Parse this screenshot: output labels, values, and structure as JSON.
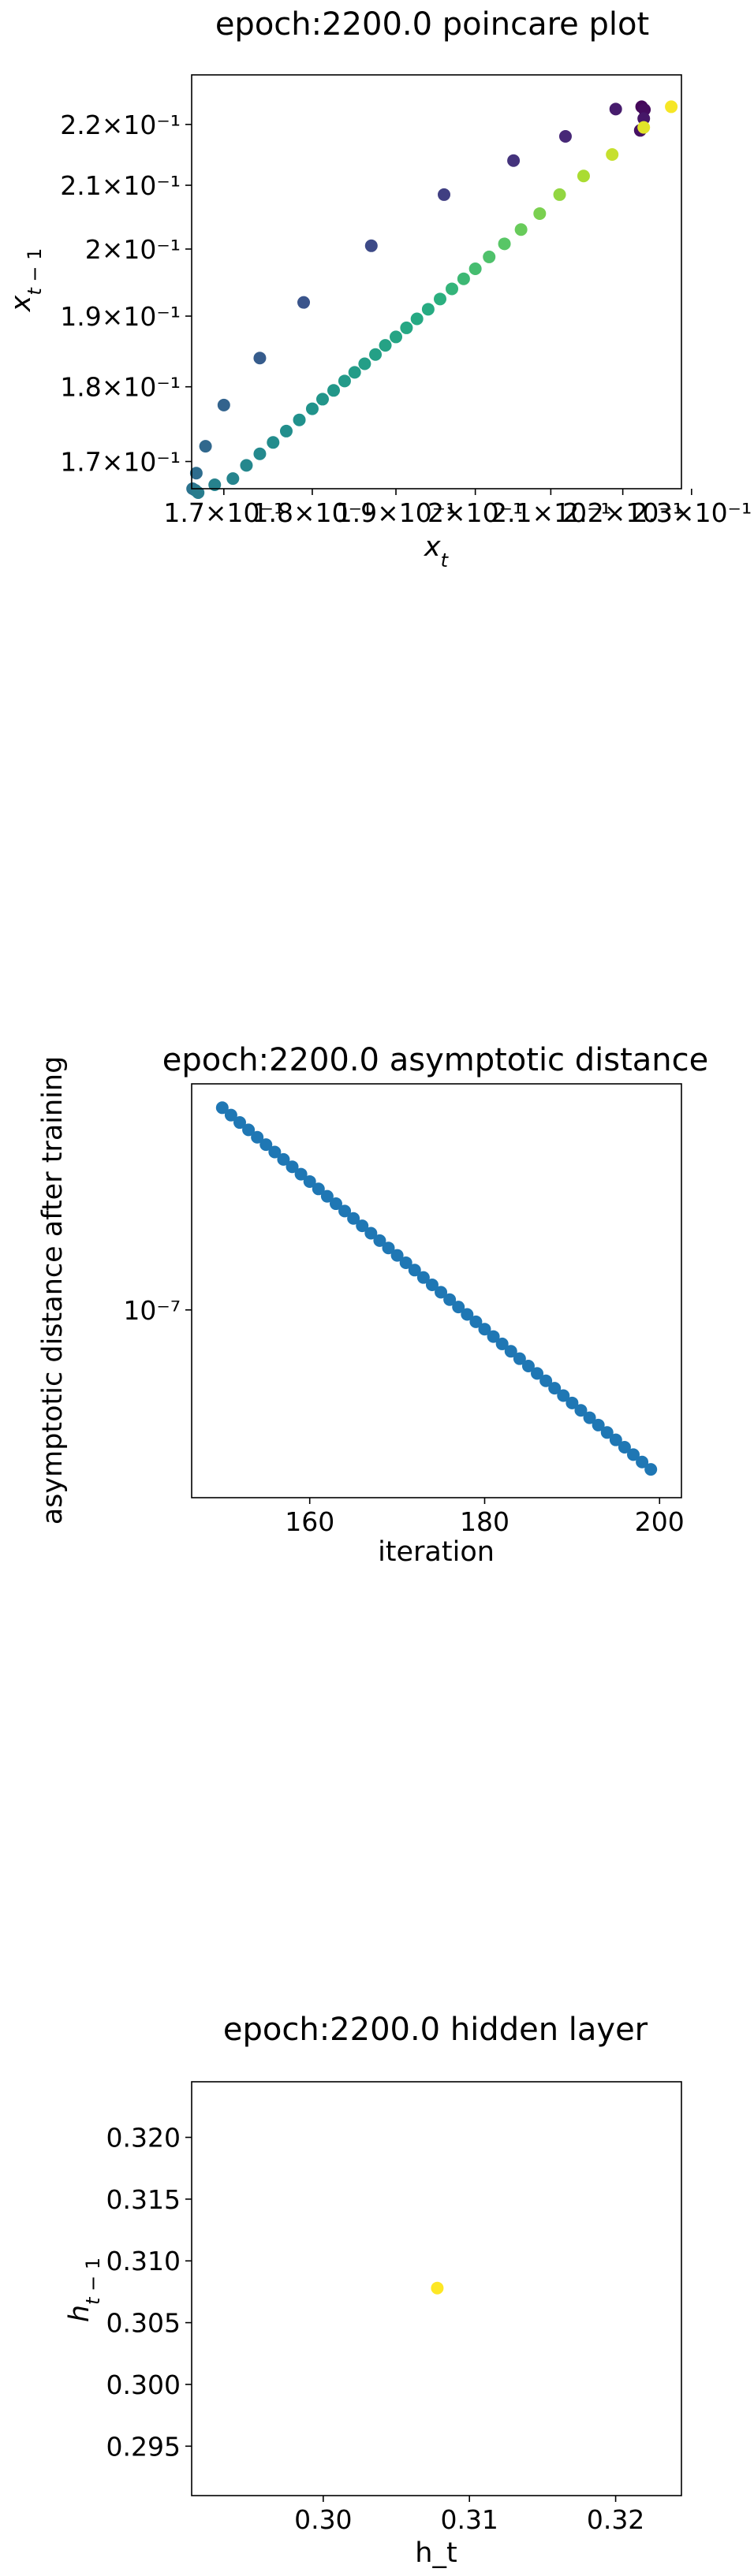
{
  "chart_data": [
    {
      "id": "poincare",
      "type": "scatter",
      "title": "epoch:2200.0 poincare plot",
      "xlabel": "x_t",
      "ylabel": "x_{t-1}",
      "xscale": "log",
      "yscale": "log",
      "xlim": [
        0.1665,
        0.2285
      ],
      "ylim": [
        0.1665,
        0.2285
      ],
      "xticks": [
        0.17,
        0.18,
        0.19,
        0.2,
        0.21,
        0.22,
        0.23
      ],
      "xtick_labels": [
        "1.7×10⁻¹",
        "1.8×10⁻¹",
        "1.9×10⁻¹",
        "2×10⁻¹",
        "2.1×10⁻¹",
        "2.2×10⁻¹",
        "2.3×10⁻¹"
      ],
      "yticks": [
        0.17,
        0.18,
        0.19,
        0.2,
        0.21,
        0.22
      ],
      "ytick_labels": [
        "1.7×10⁻¹",
        "1.8×10⁻¹",
        "1.9×10⁻¹",
        "2×10⁻¹",
        "2.1×10⁻¹",
        "2.2×10⁻¹"
      ],
      "colormap": "viridis",
      "grid": false,
      "points": [
        {
          "x": 0.2227,
          "y": 0.223,
          "c": 0.02
        },
        {
          "x": 0.2231,
          "y": 0.2225,
          "c": 0.04
        },
        {
          "x": 0.2225,
          "y": 0.219,
          "c": 0.06
        },
        {
          "x": 0.223,
          "y": 0.221,
          "c": 0.08
        },
        {
          "x": 0.219,
          "y": 0.2226,
          "c": 0.1
        },
        {
          "x": 0.212,
          "y": 0.218,
          "c": 0.14
        },
        {
          "x": 0.205,
          "y": 0.214,
          "c": 0.17
        },
        {
          "x": 0.196,
          "y": 0.2085,
          "c": 0.2
        },
        {
          "x": 0.187,
          "y": 0.2005,
          "c": 0.23
        },
        {
          "x": 0.179,
          "y": 0.192,
          "c": 0.26
        },
        {
          "x": 0.174,
          "y": 0.184,
          "c": 0.29
        },
        {
          "x": 0.17,
          "y": 0.1775,
          "c": 0.32
        },
        {
          "x": 0.168,
          "y": 0.172,
          "c": 0.34
        },
        {
          "x": 0.167,
          "y": 0.1685,
          "c": 0.36
        },
        {
          "x": 0.1666,
          "y": 0.1665,
          "c": 0.38
        },
        {
          "x": 0.1669,
          "y": 0.1663,
          "c": 0.4
        },
        {
          "x": 0.1672,
          "y": 0.166,
          "c": 0.42
        },
        {
          "x": 0.169,
          "y": 0.167,
          "c": 0.44
        },
        {
          "x": 0.171,
          "y": 0.1678,
          "c": 0.45
        },
        {
          "x": 0.1725,
          "y": 0.1695,
          "c": 0.46
        },
        {
          "x": 0.174,
          "y": 0.171,
          "c": 0.47
        },
        {
          "x": 0.1755,
          "y": 0.1725,
          "c": 0.48
        },
        {
          "x": 0.177,
          "y": 0.174,
          "c": 0.49
        },
        {
          "x": 0.1785,
          "y": 0.1755,
          "c": 0.5
        },
        {
          "x": 0.18,
          "y": 0.177,
          "c": 0.51
        },
        {
          "x": 0.1812,
          "y": 0.1783,
          "c": 0.52
        },
        {
          "x": 0.1825,
          "y": 0.1795,
          "c": 0.53
        },
        {
          "x": 0.1838,
          "y": 0.1808,
          "c": 0.54
        },
        {
          "x": 0.185,
          "y": 0.182,
          "c": 0.55
        },
        {
          "x": 0.1862,
          "y": 0.1832,
          "c": 0.56
        },
        {
          "x": 0.1875,
          "y": 0.1845,
          "c": 0.57
        },
        {
          "x": 0.1887,
          "y": 0.1858,
          "c": 0.58
        },
        {
          "x": 0.19,
          "y": 0.187,
          "c": 0.59
        },
        {
          "x": 0.1913,
          "y": 0.1883,
          "c": 0.6
        },
        {
          "x": 0.1926,
          "y": 0.1896,
          "c": 0.61
        },
        {
          "x": 0.194,
          "y": 0.191,
          "c": 0.62
        },
        {
          "x": 0.1955,
          "y": 0.1925,
          "c": 0.64
        },
        {
          "x": 0.197,
          "y": 0.194,
          "c": 0.66
        },
        {
          "x": 0.1985,
          "y": 0.1955,
          "c": 0.68
        },
        {
          "x": 0.2,
          "y": 0.197,
          "c": 0.7
        },
        {
          "x": 0.2018,
          "y": 0.1988,
          "c": 0.72
        },
        {
          "x": 0.2038,
          "y": 0.2008,
          "c": 0.74
        },
        {
          "x": 0.206,
          "y": 0.203,
          "c": 0.77
        },
        {
          "x": 0.2085,
          "y": 0.2055,
          "c": 0.8
        },
        {
          "x": 0.2112,
          "y": 0.2085,
          "c": 0.84
        },
        {
          "x": 0.2145,
          "y": 0.2115,
          "c": 0.88
        },
        {
          "x": 0.2185,
          "y": 0.215,
          "c": 0.92
        },
        {
          "x": 0.223,
          "y": 0.2195,
          "c": 0.96
        },
        {
          "x": 0.227,
          "y": 0.223,
          "c": 0.99
        }
      ]
    },
    {
      "id": "asymptotic",
      "type": "scatter",
      "title": "epoch:2200.0 asymptotic distance",
      "xlabel": "iteration",
      "ylabel": "asymptotic distance after training",
      "yscale": "log",
      "xlim": [
        146.5,
        202.5
      ],
      "ylim": [
        3.3e-08,
        3.8e-07
      ],
      "xticks": [
        160,
        180,
        200
      ],
      "xtick_labels": [
        "160",
        "180",
        "200"
      ],
      "yticks": [
        1e-07
      ],
      "ytick_labels": [
        "10⁻⁷"
      ],
      "color": "#1f77b4",
      "grid": false,
      "series": [
        {
          "x_start": 150,
          "x_end": 199,
          "y_start": 3.3e-07,
          "y_end": 3.9e-08
        }
      ]
    },
    {
      "id": "hidden",
      "type": "scatter",
      "title": "epoch:2200.0 hidden layer",
      "xlabel": "h_t",
      "ylabel": "h_{t-1}",
      "xlim": [
        0.291,
        0.3245
      ],
      "ylim": [
        0.291,
        0.3245
      ],
      "xticks": [
        0.3,
        0.31,
        0.32
      ],
      "xtick_labels": [
        "0.30",
        "0.31",
        "0.32"
      ],
      "yticks": [
        0.295,
        0.3,
        0.305,
        0.31,
        0.315,
        0.32
      ],
      "ytick_labels": [
        "0.295",
        "0.300",
        "0.305",
        "0.310",
        "0.315",
        "0.320"
      ],
      "grid": false,
      "points": [
        {
          "x": 0.3078,
          "y": 0.3078,
          "color": "#fde725"
        }
      ]
    }
  ]
}
